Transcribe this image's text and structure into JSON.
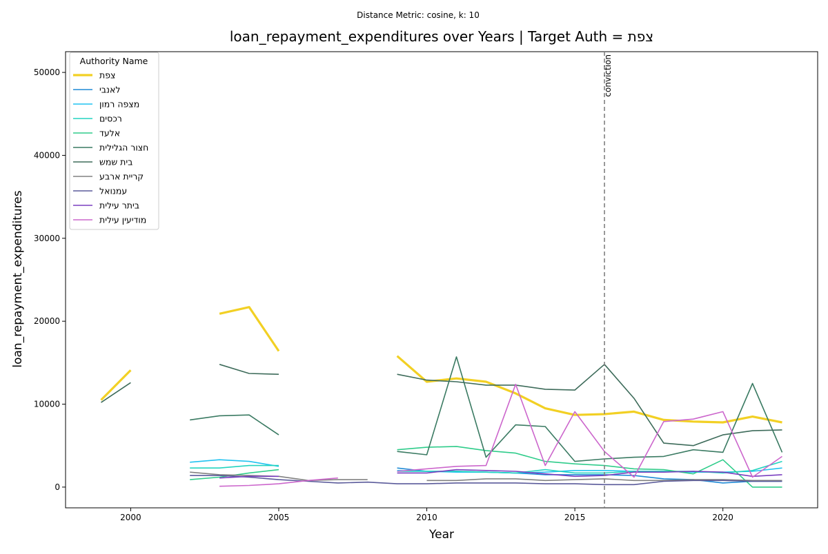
{
  "suptitle": "Distance Metric: cosine, k: 10",
  "chart_data": {
    "type": "line",
    "title": "loan_repayment_expenditures over Years | Target Auth = צפת",
    "xlabel": "Year",
    "ylabel": "loan_repayment_expenditures",
    "xlim": [
      1997.8,
      2023.2
    ],
    "ylim": [
      -2500,
      52500
    ],
    "xticks": [
      2000,
      2005,
      2010,
      2015,
      2020
    ],
    "yticks": [
      0,
      10000,
      20000,
      30000,
      40000,
      50000
    ],
    "grid": false,
    "legend": {
      "title": "Authority Name",
      "placement": "top-left"
    },
    "vline": {
      "x": 2016,
      "label": "conviction",
      "color": "#808080"
    },
    "series": [
      {
        "name": "צפת",
        "color": "#f2d024",
        "width": 3.2,
        "points": [
          [
            1999,
            10500
          ],
          [
            2000,
            14100
          ],
          [
            2001,
            null
          ],
          [
            2003,
            20900
          ],
          [
            2004,
            21700
          ],
          [
            2005,
            16400
          ],
          [
            2006,
            null
          ],
          [
            2009,
            15800
          ],
          [
            2010,
            12700
          ],
          [
            2011,
            13100
          ],
          [
            2012,
            12700
          ],
          [
            2013,
            11300
          ],
          [
            2014,
            9500
          ],
          [
            2015,
            8700
          ],
          [
            2016,
            8800
          ],
          [
            2017,
            9100
          ],
          [
            2018,
            8100
          ],
          [
            2019,
            7900
          ],
          [
            2020,
            7800
          ],
          [
            2021,
            8500
          ],
          [
            2022,
            7800
          ]
        ]
      },
      {
        "name": "לאנבי",
        "color": "#1f8ad6",
        "width": 1.6,
        "points": [
          [
            2009,
            2300
          ],
          [
            2010,
            1900
          ],
          [
            2011,
            1900
          ],
          [
            2012,
            1800
          ],
          [
            2013,
            1700
          ],
          [
            2014,
            1500
          ],
          [
            2015,
            1500
          ],
          [
            2016,
            1500
          ],
          [
            2017,
            1400
          ],
          [
            2018,
            1000
          ],
          [
            2019,
            900
          ],
          [
            2020,
            500
          ],
          [
            2021,
            700
          ],
          [
            2022,
            700
          ]
        ]
      },
      {
        "name": "מצפה רמון",
        "color": "#1fc2f0",
        "width": 1.6,
        "points": [
          [
            2002,
            3000
          ],
          [
            2003,
            3300
          ],
          [
            2004,
            3100
          ],
          [
            2005,
            2500
          ],
          [
            2006,
            null
          ],
          [
            2009,
            2000
          ],
          [
            2010,
            1900
          ],
          [
            2011,
            1800
          ],
          [
            2012,
            1800
          ],
          [
            2013,
            1700
          ],
          [
            2014,
            1800
          ],
          [
            2015,
            2000
          ],
          [
            2016,
            2000
          ],
          [
            2017,
            1900
          ],
          [
            2018,
            1900
          ],
          [
            2019,
            1800
          ],
          [
            2020,
            1800
          ],
          [
            2021,
            1900
          ],
          [
            2022,
            2300
          ]
        ]
      },
      {
        "name": "רכסים",
        "color": "#22d4c0",
        "width": 1.6,
        "points": [
          [
            2002,
            2300
          ],
          [
            2003,
            2300
          ],
          [
            2004,
            2600
          ],
          [
            2005,
            2600
          ],
          [
            2006,
            null
          ],
          [
            2009,
            1900
          ],
          [
            2010,
            1900
          ],
          [
            2011,
            1900
          ],
          [
            2012,
            1800
          ],
          [
            2013,
            1700
          ],
          [
            2014,
            2100
          ],
          [
            2015,
            1700
          ],
          [
            2016,
            1700
          ],
          [
            2017,
            1900
          ],
          [
            2018,
            1900
          ],
          [
            2019,
            1900
          ],
          [
            2020,
            1700
          ],
          [
            2021,
            2000
          ],
          [
            2022,
            3100
          ]
        ]
      },
      {
        "name": "אלעד",
        "color": "#2ecc8a",
        "width": 1.6,
        "points": [
          [
            2002,
            900
          ],
          [
            2003,
            1200
          ],
          [
            2004,
            1700
          ],
          [
            2005,
            2100
          ],
          [
            2006,
            null
          ],
          [
            2009,
            4500
          ],
          [
            2010,
            4800
          ],
          [
            2011,
            4900
          ],
          [
            2012,
            4400
          ],
          [
            2013,
            4100
          ],
          [
            2014,
            3100
          ],
          [
            2015,
            2800
          ],
          [
            2016,
            2600
          ],
          [
            2017,
            2200
          ],
          [
            2018,
            2100
          ],
          [
            2019,
            1600
          ],
          [
            2020,
            3300
          ],
          [
            2021,
            0
          ],
          [
            2022,
            0
          ]
        ]
      },
      {
        "name": "חצור הגלילית",
        "color": "#3a7a62",
        "width": 1.6,
        "points": [
          [
            2002,
            8100
          ],
          [
            2003,
            8600
          ],
          [
            2004,
            8700
          ],
          [
            2005,
            6300
          ],
          [
            2006,
            null
          ],
          [
            2009,
            4300
          ],
          [
            2010,
            3900
          ],
          [
            2011,
            15700
          ],
          [
            2012,
            3600
          ],
          [
            2013,
            7500
          ],
          [
            2014,
            7300
          ],
          [
            2015,
            3100
          ],
          [
            2016,
            3400
          ],
          [
            2017,
            3600
          ],
          [
            2018,
            3700
          ],
          [
            2019,
            4500
          ],
          [
            2020,
            4200
          ],
          [
            2021,
            12500
          ],
          [
            2022,
            4200
          ]
        ]
      },
      {
        "name": "בית שמש",
        "color": "#3d6b5a",
        "width": 1.6,
        "points": [
          [
            1999,
            10200
          ],
          [
            2000,
            12600
          ],
          [
            2001,
            null
          ],
          [
            2003,
            14800
          ],
          [
            2004,
            13700
          ],
          [
            2005,
            13600
          ],
          [
            2006,
            null
          ],
          [
            2009,
            13600
          ],
          [
            2010,
            12900
          ],
          [
            2011,
            12700
          ],
          [
            2012,
            12300
          ],
          [
            2013,
            12300
          ],
          [
            2014,
            11800
          ],
          [
            2015,
            11700
          ],
          [
            2016,
            14800
          ],
          [
            2017,
            10700
          ],
          [
            2018,
            5300
          ],
          [
            2019,
            5000
          ],
          [
            2020,
            6300
          ],
          [
            2021,
            6800
          ],
          [
            2022,
            6900
          ]
        ]
      },
      {
        "name": "קריית ארבע",
        "color": "#808080",
        "width": 1.6,
        "points": [
          [
            2002,
            1800
          ],
          [
            2003,
            1500
          ],
          [
            2004,
            1400
          ],
          [
            2005,
            1300
          ],
          [
            2006,
            800
          ],
          [
            2007,
            900
          ],
          [
            2008,
            900
          ],
          [
            2009,
            null
          ],
          [
            2010,
            800
          ],
          [
            2011,
            800
          ],
          [
            2012,
            1000
          ],
          [
            2013,
            1000
          ],
          [
            2014,
            800
          ],
          [
            2015,
            900
          ],
          [
            2016,
            1000
          ],
          [
            2017,
            800
          ],
          [
            2018,
            800
          ],
          [
            2019,
            900
          ],
          [
            2020,
            900
          ],
          [
            2021,
            800
          ],
          [
            2022,
            800
          ]
        ]
      },
      {
        "name": "עמנואל",
        "color": "#5a5a9a",
        "width": 1.6,
        "points": [
          [
            2002,
            1400
          ],
          [
            2003,
            1400
          ],
          [
            2004,
            1200
          ],
          [
            2005,
            900
          ],
          [
            2006,
            700
          ],
          [
            2007,
            500
          ],
          [
            2008,
            600
          ],
          [
            2009,
            400
          ],
          [
            2010,
            400
          ],
          [
            2011,
            500
          ],
          [
            2012,
            500
          ],
          [
            2013,
            500
          ],
          [
            2014,
            400
          ],
          [
            2015,
            400
          ],
          [
            2016,
            300
          ],
          [
            2017,
            300
          ],
          [
            2018,
            700
          ],
          [
            2019,
            800
          ],
          [
            2020,
            800
          ],
          [
            2021,
            700
          ],
          [
            2022,
            700
          ]
        ]
      },
      {
        "name": "ביתר עילית",
        "color": "#7a3fc0",
        "width": 1.6,
        "points": [
          [
            2003,
            1100
          ],
          [
            2004,
            1300
          ],
          [
            2005,
            1300
          ],
          [
            2006,
            null
          ],
          [
            2009,
            1700
          ],
          [
            2010,
            1700
          ],
          [
            2011,
            2100
          ],
          [
            2012,
            2000
          ],
          [
            2013,
            1900
          ],
          [
            2014,
            1600
          ],
          [
            2015,
            1300
          ],
          [
            2016,
            1400
          ],
          [
            2017,
            1800
          ],
          [
            2018,
            1800
          ],
          [
            2019,
            1900
          ],
          [
            2020,
            1800
          ],
          [
            2021,
            1300
          ],
          [
            2022,
            1500
          ]
        ]
      },
      {
        "name": "מודיעין עילית",
        "color": "#cc66cc",
        "width": 1.6,
        "points": [
          [
            2003,
            100
          ],
          [
            2004,
            200
          ],
          [
            2005,
            400
          ],
          [
            2006,
            800
          ],
          [
            2007,
            1100
          ],
          [
            2008,
            null
          ],
          [
            2009,
            1900
          ],
          [
            2010,
            2200
          ],
          [
            2011,
            2500
          ],
          [
            2012,
            2600
          ],
          [
            2013,
            12400
          ],
          [
            2014,
            2600
          ],
          [
            2015,
            9100
          ],
          [
            2016,
            4300
          ],
          [
            2017,
            1200
          ],
          [
            2018,
            7900
          ],
          [
            2019,
            8200
          ],
          [
            2020,
            9100
          ],
          [
            2021,
            1200
          ],
          [
            2022,
            3700
          ]
        ]
      }
    ]
  }
}
